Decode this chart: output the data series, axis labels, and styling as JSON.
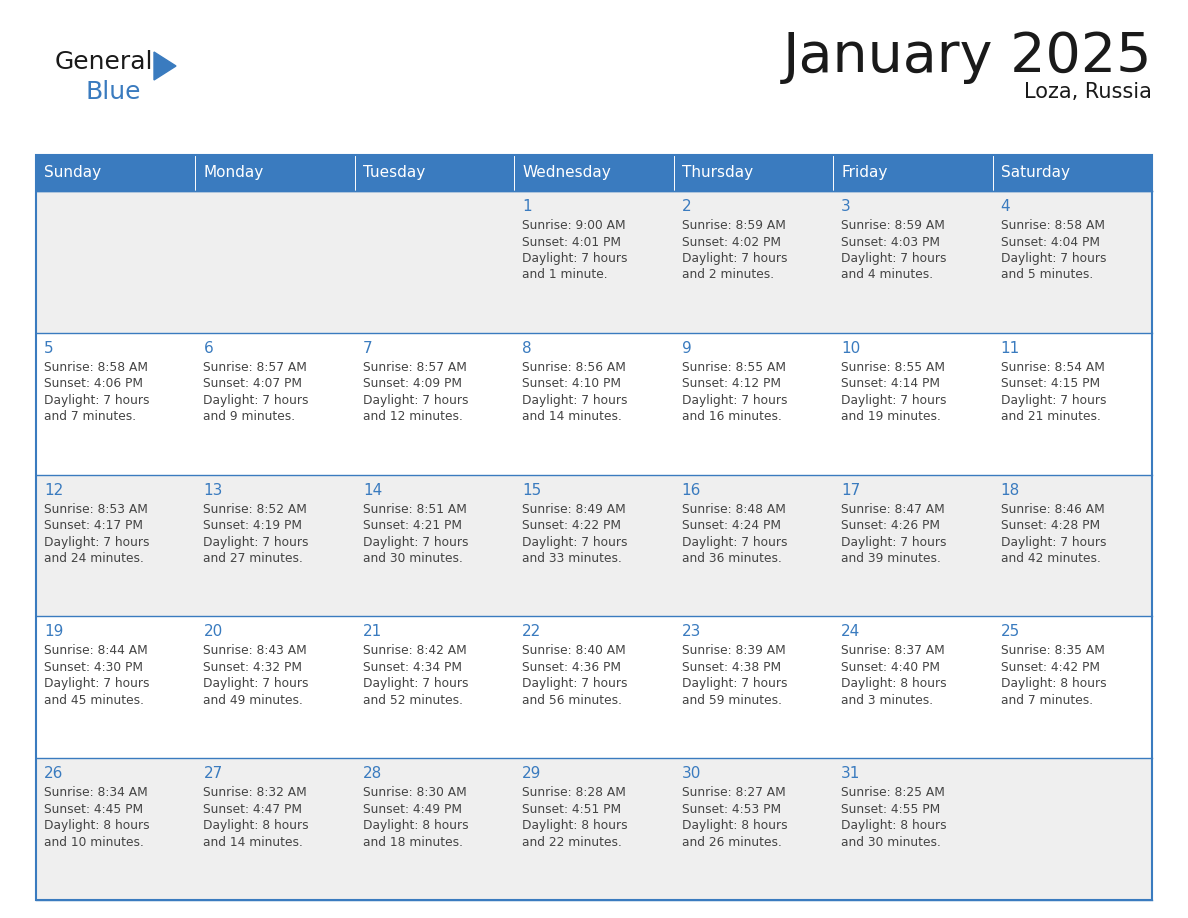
{
  "title": "January 2025",
  "subtitle": "Loza, Russia",
  "days_of_week": [
    "Sunday",
    "Monday",
    "Tuesday",
    "Wednesday",
    "Thursday",
    "Friday",
    "Saturday"
  ],
  "header_bg": "#3A7BBF",
  "header_text": "#FFFFFF",
  "cell_bg_odd": "#EFEFEF",
  "cell_bg_even": "#FFFFFF",
  "day_number_color": "#3A7BBF",
  "text_color": "#444444",
  "line_color": "#3A7BBF",
  "calendar_data": [
    [
      null,
      null,
      null,
      {
        "day": 1,
        "sunrise": "9:00 AM",
        "sunset": "4:01 PM",
        "daylight": "7 hours and 1 minute."
      },
      {
        "day": 2,
        "sunrise": "8:59 AM",
        "sunset": "4:02 PM",
        "daylight": "7 hours and 2 minutes."
      },
      {
        "day": 3,
        "sunrise": "8:59 AM",
        "sunset": "4:03 PM",
        "daylight": "7 hours and 4 minutes."
      },
      {
        "day": 4,
        "sunrise": "8:58 AM",
        "sunset": "4:04 PM",
        "daylight": "7 hours and 5 minutes."
      }
    ],
    [
      {
        "day": 5,
        "sunrise": "8:58 AM",
        "sunset": "4:06 PM",
        "daylight": "7 hours and 7 minutes."
      },
      {
        "day": 6,
        "sunrise": "8:57 AM",
        "sunset": "4:07 PM",
        "daylight": "7 hours and 9 minutes."
      },
      {
        "day": 7,
        "sunrise": "8:57 AM",
        "sunset": "4:09 PM",
        "daylight": "7 hours and 12 minutes."
      },
      {
        "day": 8,
        "sunrise": "8:56 AM",
        "sunset": "4:10 PM",
        "daylight": "7 hours and 14 minutes."
      },
      {
        "day": 9,
        "sunrise": "8:55 AM",
        "sunset": "4:12 PM",
        "daylight": "7 hours and 16 minutes."
      },
      {
        "day": 10,
        "sunrise": "8:55 AM",
        "sunset": "4:14 PM",
        "daylight": "7 hours and 19 minutes."
      },
      {
        "day": 11,
        "sunrise": "8:54 AM",
        "sunset": "4:15 PM",
        "daylight": "7 hours and 21 minutes."
      }
    ],
    [
      {
        "day": 12,
        "sunrise": "8:53 AM",
        "sunset": "4:17 PM",
        "daylight": "7 hours and 24 minutes."
      },
      {
        "day": 13,
        "sunrise": "8:52 AM",
        "sunset": "4:19 PM",
        "daylight": "7 hours and 27 minutes."
      },
      {
        "day": 14,
        "sunrise": "8:51 AM",
        "sunset": "4:21 PM",
        "daylight": "7 hours and 30 minutes."
      },
      {
        "day": 15,
        "sunrise": "8:49 AM",
        "sunset": "4:22 PM",
        "daylight": "7 hours and 33 minutes."
      },
      {
        "day": 16,
        "sunrise": "8:48 AM",
        "sunset": "4:24 PM",
        "daylight": "7 hours and 36 minutes."
      },
      {
        "day": 17,
        "sunrise": "8:47 AM",
        "sunset": "4:26 PM",
        "daylight": "7 hours and 39 minutes."
      },
      {
        "day": 18,
        "sunrise": "8:46 AM",
        "sunset": "4:28 PM",
        "daylight": "7 hours and 42 minutes."
      }
    ],
    [
      {
        "day": 19,
        "sunrise": "8:44 AM",
        "sunset": "4:30 PM",
        "daylight": "7 hours and 45 minutes."
      },
      {
        "day": 20,
        "sunrise": "8:43 AM",
        "sunset": "4:32 PM",
        "daylight": "7 hours and 49 minutes."
      },
      {
        "day": 21,
        "sunrise": "8:42 AM",
        "sunset": "4:34 PM",
        "daylight": "7 hours and 52 minutes."
      },
      {
        "day": 22,
        "sunrise": "8:40 AM",
        "sunset": "4:36 PM",
        "daylight": "7 hours and 56 minutes."
      },
      {
        "day": 23,
        "sunrise": "8:39 AM",
        "sunset": "4:38 PM",
        "daylight": "7 hours and 59 minutes."
      },
      {
        "day": 24,
        "sunrise": "8:37 AM",
        "sunset": "4:40 PM",
        "daylight": "8 hours and 3 minutes."
      },
      {
        "day": 25,
        "sunrise": "8:35 AM",
        "sunset": "4:42 PM",
        "daylight": "8 hours and 7 minutes."
      }
    ],
    [
      {
        "day": 26,
        "sunrise": "8:34 AM",
        "sunset": "4:45 PM",
        "daylight": "8 hours and 10 minutes."
      },
      {
        "day": 27,
        "sunrise": "8:32 AM",
        "sunset": "4:47 PM",
        "daylight": "8 hours and 14 minutes."
      },
      {
        "day": 28,
        "sunrise": "8:30 AM",
        "sunset": "4:49 PM",
        "daylight": "8 hours and 18 minutes."
      },
      {
        "day": 29,
        "sunrise": "8:28 AM",
        "sunset": "4:51 PM",
        "daylight": "8 hours and 22 minutes."
      },
      {
        "day": 30,
        "sunrise": "8:27 AM",
        "sunset": "4:53 PM",
        "daylight": "8 hours and 26 minutes."
      },
      {
        "day": 31,
        "sunrise": "8:25 AM",
        "sunset": "4:55 PM",
        "daylight": "8 hours and 30 minutes."
      },
      null
    ]
  ],
  "logo_general_color": "#1a1a1a",
  "logo_blue_color": "#3A7BBF",
  "fig_width": 11.88,
  "fig_height": 9.18
}
